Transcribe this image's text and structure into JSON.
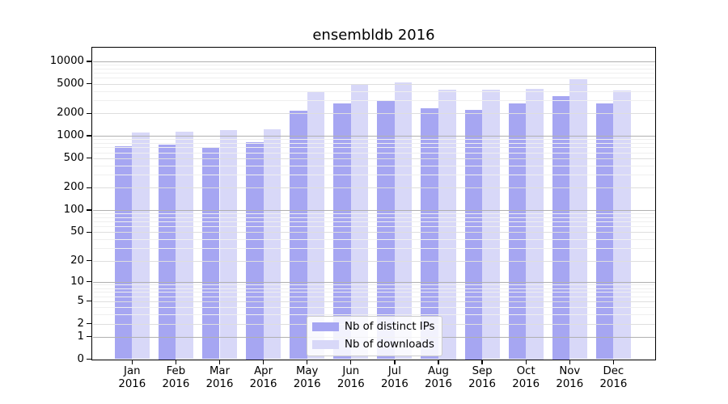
{
  "chart_data": {
    "type": "bar",
    "title": "ensembldb 2016",
    "x": {
      "months": [
        "Jan",
        "Feb",
        "Mar",
        "Apr",
        "May",
        "Jun",
        "Jul",
        "Aug",
        "Sep",
        "Oct",
        "Nov",
        "Dec"
      ],
      "year": "2016"
    },
    "y_ticks": [
      0,
      1,
      2,
      5,
      10,
      20,
      50,
      100,
      200,
      500,
      1000,
      2000,
      5000,
      10000
    ],
    "y_scale": "symlog (pixel position proportional to log10(value+1))",
    "ylim": [
      0,
      15000
    ],
    "grid": true,
    "legend_position": "lower center",
    "background": "#ffffff",
    "series": [
      {
        "name": "Nb of distinct IPs",
        "color": "#a6a6f2",
        "values": [
          730,
          770,
          690,
          820,
          2190,
          2740,
          2930,
          2340,
          2230,
          2740,
          3410,
          2700
        ]
      },
      {
        "name": "Nb of downloads",
        "color": "#d8d8f8",
        "values": [
          1110,
          1140,
          1200,
          1220,
          3990,
          4800,
          5260,
          4170,
          4200,
          4270,
          5810,
          4090
        ]
      }
    ]
  }
}
